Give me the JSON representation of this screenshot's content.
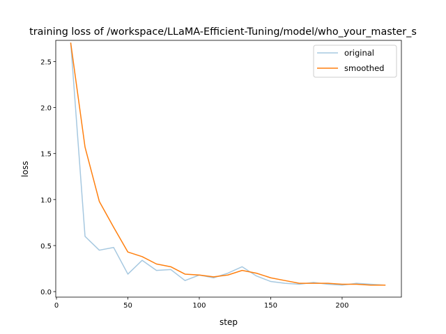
{
  "chart_data": {
    "type": "line",
    "title": "training loss of /workspace/LLaMA-Efficient-Tuning/model/who_your_master_s",
    "xlabel": "step",
    "ylabel": "loss",
    "xlim": [
      -0.5,
      241.5
    ],
    "ylim": [
      -0.06,
      2.73
    ],
    "xticks": [
      0,
      50,
      100,
      150,
      200
    ],
    "xtick_labels": [
      "0",
      "50",
      "100",
      "150",
      "200"
    ],
    "yticks": [
      0.0,
      0.5,
      1.0,
      1.5,
      2.0,
      2.5
    ],
    "ytick_labels": [
      "0.0",
      "0.5",
      "1.0",
      "1.5",
      "2.0",
      "2.5"
    ],
    "grid": false,
    "legend_position": "upper right",
    "x": [
      10,
      20,
      30,
      40,
      50,
      60,
      70,
      80,
      90,
      100,
      110,
      120,
      130,
      140,
      150,
      160,
      170,
      180,
      190,
      200,
      210,
      220,
      230
    ],
    "series": [
      {
        "name": "original",
        "color": "#a6c8e0",
        "values": [
          2.7,
          0.6,
          0.45,
          0.48,
          0.19,
          0.34,
          0.23,
          0.24,
          0.12,
          0.18,
          0.15,
          0.2,
          0.27,
          0.17,
          0.11,
          0.09,
          0.08,
          0.1,
          0.08,
          0.07,
          0.09,
          0.08,
          0.07
        ]
      },
      {
        "name": "smoothed",
        "color": "#ff7f0e",
        "values": [
          2.7,
          1.57,
          0.98,
          0.7,
          0.43,
          0.38,
          0.3,
          0.27,
          0.19,
          0.18,
          0.16,
          0.18,
          0.23,
          0.2,
          0.15,
          0.12,
          0.09,
          0.09,
          0.09,
          0.08,
          0.08,
          0.07,
          0.07
        ]
      }
    ]
  }
}
